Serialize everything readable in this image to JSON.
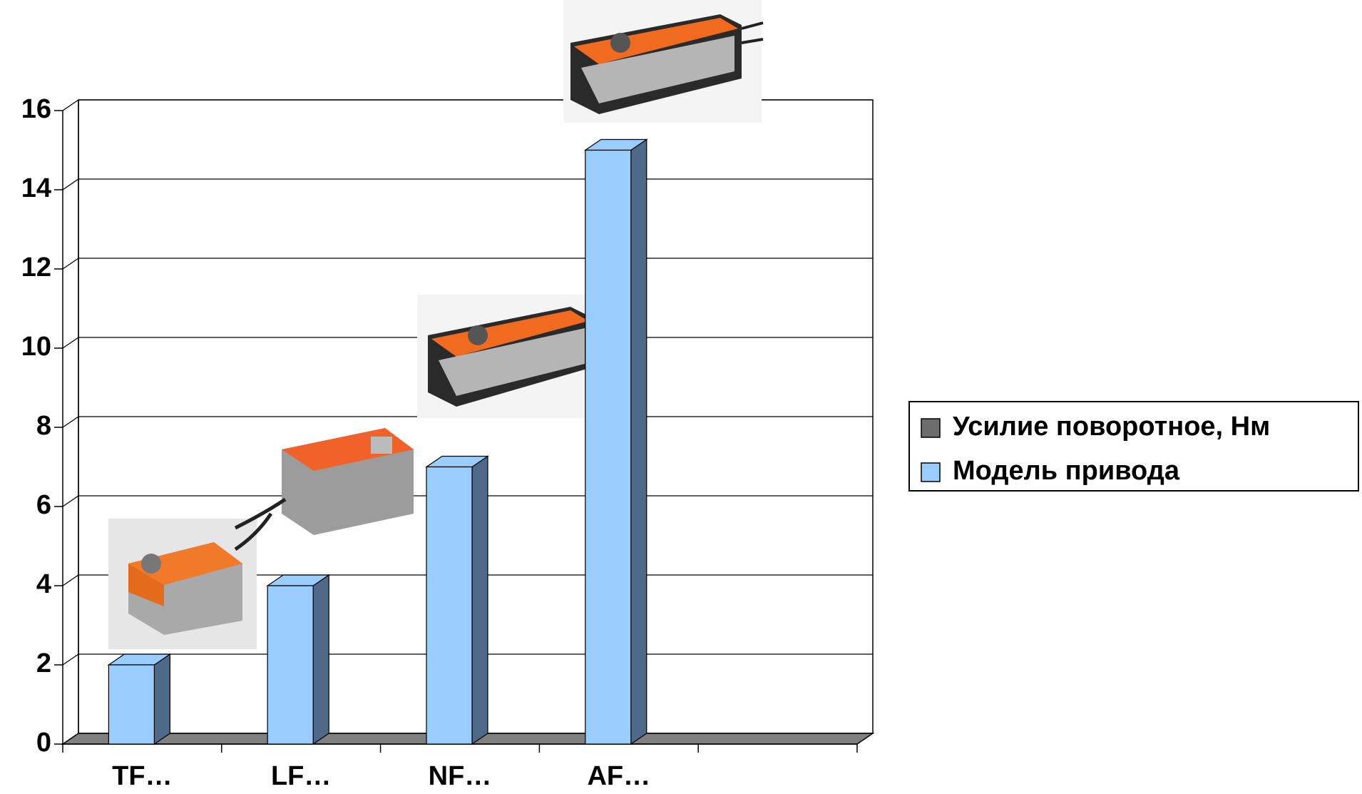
{
  "chart_data": {
    "type": "bar3d",
    "categories": [
      "TF…",
      "LF…",
      "NF…",
      "AF…",
      null
    ],
    "series": [
      {
        "name": "Усилие поворотное, Нм",
        "color": "#6d6d6d",
        "values": [
          null,
          null,
          null,
          null,
          null
        ]
      },
      {
        "name": "Модель привода",
        "color": "#99ccff",
        "values": [
          2,
          4,
          7,
          15,
          null
        ]
      }
    ],
    "ylim": [
      0,
      16
    ],
    "yticks": [
      0,
      2,
      4,
      6,
      8,
      10,
      12,
      14,
      16
    ],
    "grid": true,
    "legend": "right"
  }
}
